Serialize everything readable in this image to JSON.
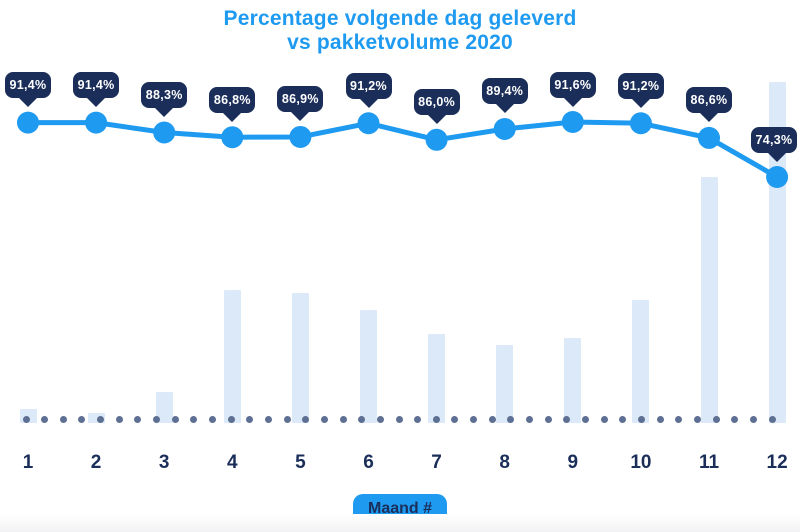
{
  "title": {
    "line1": "Percentage volgende dag geleverd",
    "line2": "vs pakketvolume 2020"
  },
  "x_axis": {
    "label": "Maand #",
    "tick_labels": [
      "1",
      "2",
      "3",
      "4",
      "5",
      "6",
      "7",
      "8",
      "9",
      "10",
      "11",
      "12"
    ]
  },
  "colors": {
    "accent_blue": "#1e9af0",
    "navy": "#1b2e59",
    "bar_fill": "#dbe9f8",
    "dot": "#5d6f92",
    "tooltip_text": "#ffffff",
    "background": "#ffffff"
  },
  "chart_data": {
    "type": "line+bar",
    "title": "Percentage volgende dag geleverd vs pakketvolume 2020",
    "categories": [
      1,
      2,
      3,
      4,
      5,
      6,
      7,
      8,
      9,
      10,
      11,
      12
    ],
    "xlabel": "Maand #",
    "ylabel": "",
    "grid": false,
    "legend": false,
    "baseline": "dotted horizontal line at x-axis",
    "series": [
      {
        "name": "Percentage volgende dag geleverd",
        "type": "line",
        "unit": "%",
        "values": [
          91.4,
          91.4,
          88.3,
          86.8,
          86.9,
          91.2,
          86.0,
          89.4,
          91.6,
          91.2,
          86.6,
          74.3
        ],
        "labels": [
          "91,4%",
          "91,4%",
          "88,3%",
          "86,8%",
          "86,9%",
          "91,2%",
          "86,0%",
          "89,4%",
          "91,6%",
          "91,2%",
          "86,6%",
          "74,3%"
        ]
      },
      {
        "name": "Pakketvolume 2020",
        "type": "bar",
        "unit": "relative volume, % of month 12 (estimated; no value axis shown)",
        "values": [
          4,
          3,
          9,
          39,
          38,
          33,
          26,
          23,
          25,
          36,
          72,
          100
        ]
      }
    ]
  }
}
